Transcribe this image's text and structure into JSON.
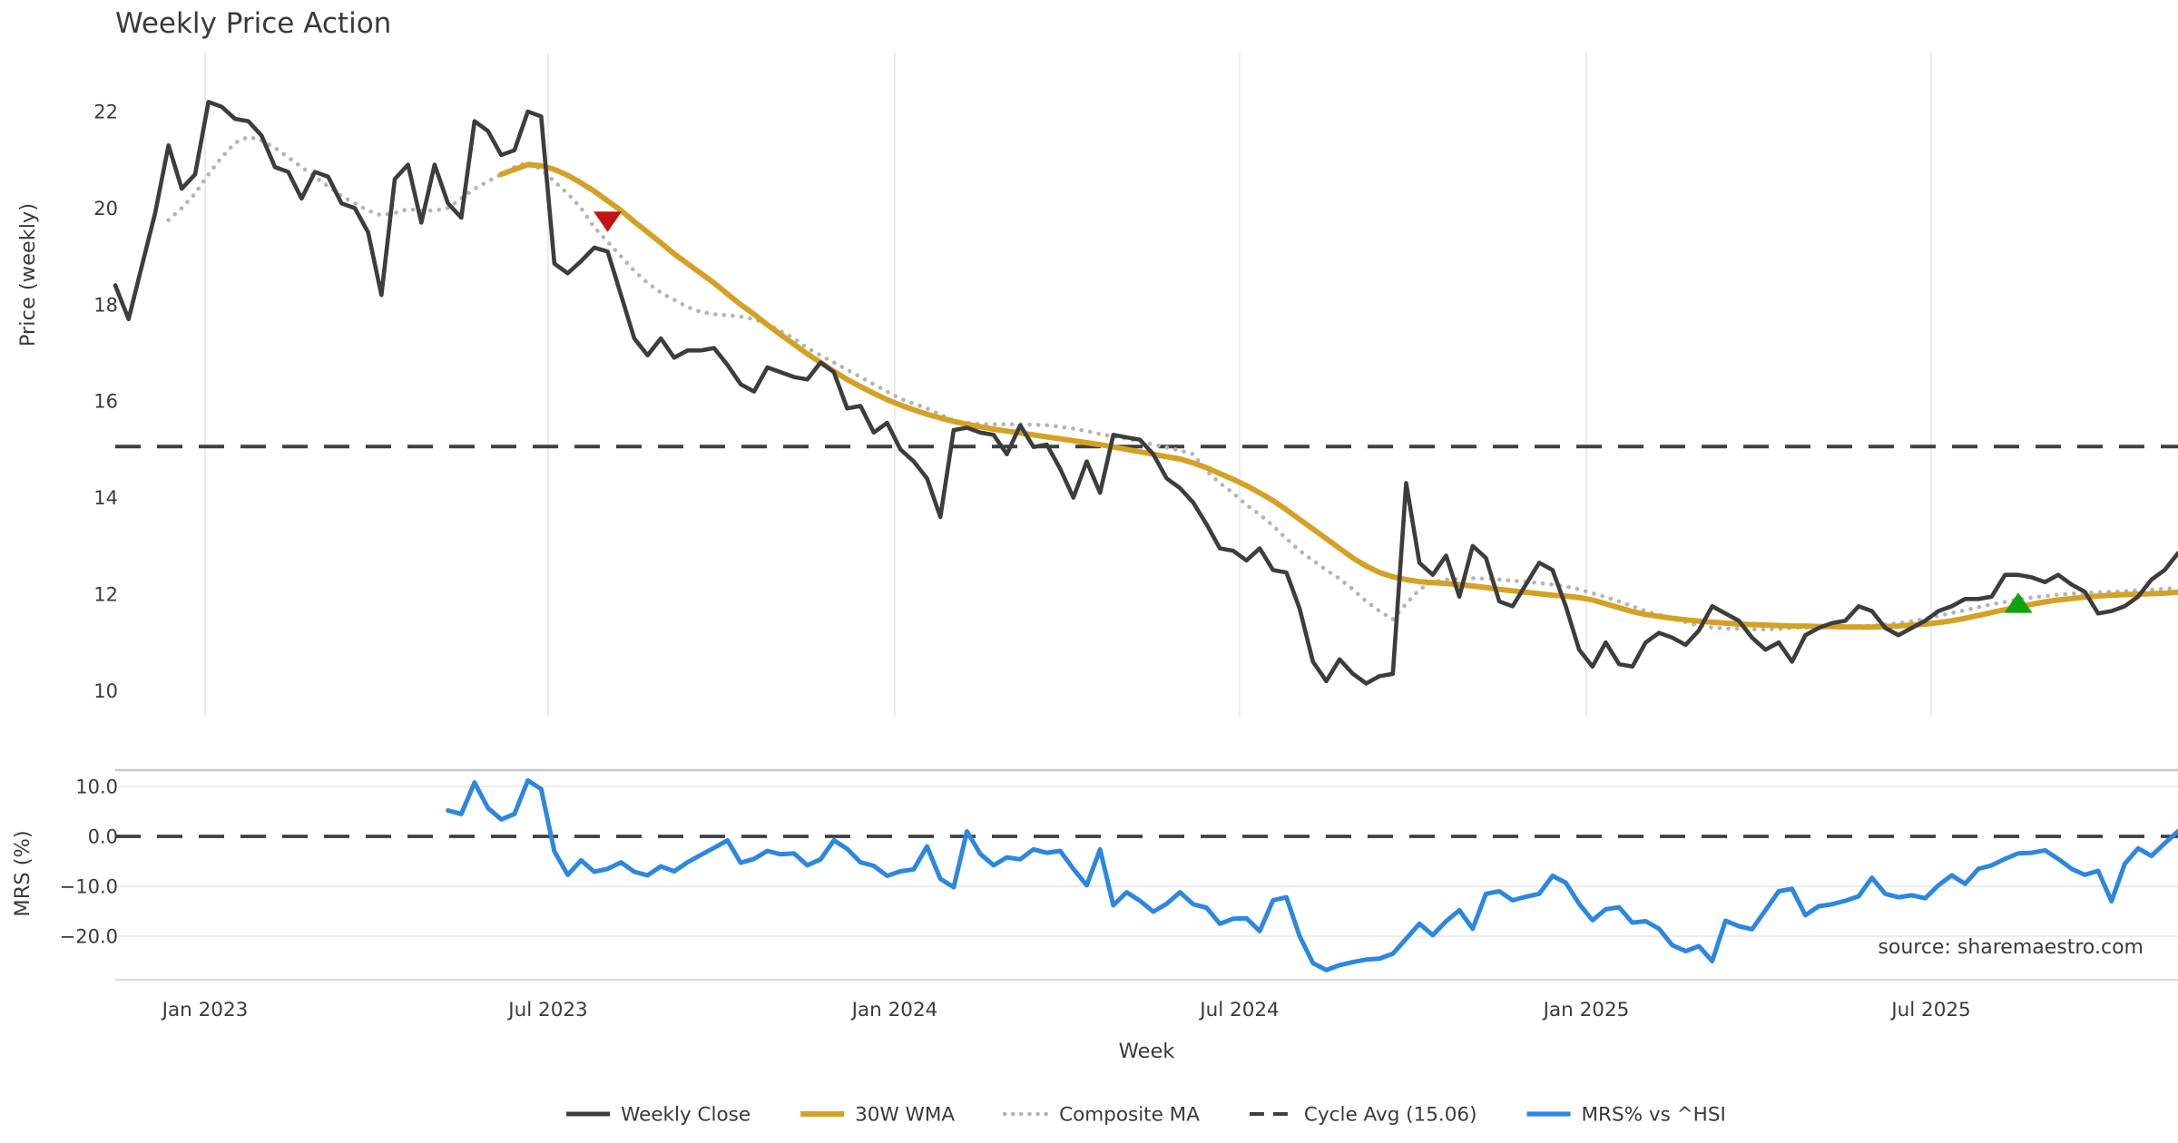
{
  "chart_data": {
    "type": "line",
    "title": "Weekly Price Action",
    "source_note": "source: sharemaestro.com",
    "xlabel": "Week",
    "x_ticklabels": [
      "Jan 2023",
      "Jul 2023",
      "Jan 2024",
      "Jul 2024",
      "Jan 2025",
      "Jul 2025"
    ],
    "top_panel": {
      "ylabel": "Price (weekly)",
      "ytick_values": [
        22,
        20,
        18,
        16,
        14,
        12,
        10
      ],
      "ytick_labels": [
        "22",
        "20",
        "18",
        "16",
        "14",
        "12",
        "10"
      ],
      "ylim": [
        9.6,
        23.2
      ],
      "cycle_avg_value": 15.06
    },
    "bottom_panel": {
      "ylabel": "MRS (%)",
      "ytick_values": [
        10,
        0,
        -10,
        -20
      ],
      "ytick_labels": [
        "10.0",
        "0.0",
        "−10.0",
        "−20.0"
      ],
      "ylim": [
        -28.5,
        13.5
      ],
      "zero_line_value": 0
    },
    "legend": [
      {
        "label": "Weekly Close",
        "style": "solid-dark"
      },
      {
        "label": "30W WMA",
        "style": "solid-gold"
      },
      {
        "label": "Composite MA",
        "style": "dotted-gray"
      },
      {
        "label": "Cycle Avg (15.06)",
        "style": "dashed-dark"
      },
      {
        "label": "MRS% vs ^HSI",
        "style": "solid-blue"
      }
    ],
    "colors": {
      "weekly_close": "#3d3d3d",
      "wma": "#d5a124",
      "composite": "#b5b5b5",
      "cycle_avg": "#3f3f3f",
      "mrs": "#2c87e0",
      "sell_marker": "#c51212",
      "buy_marker": "#12a312",
      "grid": "#e9edf2",
      "hgrid": "#ededed",
      "spine_top": "#c2c7ce",
      "spine_bottom": "#d9d9d9",
      "text": "#2d2d2d",
      "tick_text": "#3a3a3a",
      "source_text": "#9b9b9b"
    },
    "markers": {
      "sell": {
        "week": 37,
        "price": 19.72,
        "shape": "triangle-down"
      },
      "buy": {
        "week": 143,
        "price": 11.82,
        "shape": "triangle-up"
      }
    },
    "series": {
      "weekly_close": [
        18.4,
        17.7,
        18.8,
        19.9,
        21.3,
        20.4,
        20.7,
        22.2,
        22.1,
        21.85,
        21.8,
        21.5,
        20.85,
        20.75,
        20.2,
        20.75,
        20.65,
        20.1,
        20.0,
        19.5,
        18.2,
        20.6,
        20.9,
        19.7,
        20.9,
        20.1,
        19.8,
        21.8,
        21.6,
        21.1,
        21.2,
        22.0,
        21.9,
        18.85,
        18.65,
        18.9,
        19.18,
        19.1,
        18.2,
        17.3,
        16.95,
        17.3,
        16.9,
        17.05,
        17.05,
        17.1,
        16.75,
        16.35,
        16.2,
        16.7,
        16.6,
        16.5,
        16.45,
        16.8,
        16.6,
        15.85,
        15.9,
        15.35,
        15.55,
        15.0,
        14.75,
        14.4,
        13.6,
        15.4,
        15.45,
        15.35,
        15.3,
        14.9,
        15.5,
        15.05,
        15.1,
        14.6,
        14.0,
        14.75,
        14.1,
        15.3,
        15.25,
        15.2,
        14.9,
        14.4,
        14.2,
        13.9,
        13.45,
        12.95,
        12.9,
        12.7,
        12.95,
        12.5,
        12.45,
        11.7,
        10.6,
        10.2,
        10.65,
        10.35,
        10.15,
        10.3,
        10.35,
        14.3,
        12.65,
        12.4,
        12.8,
        11.95,
        13.0,
        12.75,
        11.85,
        11.75,
        12.2,
        12.65,
        12.5,
        11.75,
        10.85,
        10.5,
        11.0,
        10.55,
        10.5,
        11.0,
        11.2,
        11.1,
        10.95,
        11.25,
        11.75,
        11.6,
        11.45,
        11.1,
        10.85,
        11.0,
        10.6,
        11.15,
        11.3,
        11.4,
        11.45,
        11.75,
        11.65,
        11.3,
        11.15,
        11.3,
        11.45,
        11.65,
        11.75,
        11.9,
        11.9,
        11.95,
        12.4,
        12.4,
        12.35,
        12.25,
        12.4,
        12.2,
        12.05,
        11.6,
        11.65,
        11.75,
        11.95,
        12.3,
        12.5,
        12.85
      ],
      "wma_30w": [
        null,
        null,
        null,
        null,
        null,
        null,
        null,
        null,
        null,
        null,
        null,
        null,
        null,
        null,
        null,
        null,
        null,
        null,
        null,
        null,
        null,
        null,
        null,
        null,
        null,
        null,
        null,
        null,
        null,
        20.7,
        20.8,
        20.9,
        20.88,
        20.8,
        20.68,
        20.52,
        20.35,
        20.15,
        19.95,
        19.72,
        19.5,
        19.28,
        19.05,
        18.85,
        18.65,
        18.45,
        18.22,
        18.0,
        17.8,
        17.58,
        17.38,
        17.18,
        16.98,
        16.8,
        16.62,
        16.45,
        16.3,
        16.16,
        16.03,
        15.92,
        15.82,
        15.73,
        15.65,
        15.58,
        15.52,
        15.47,
        15.42,
        15.38,
        15.34,
        15.3,
        15.26,
        15.22,
        15.18,
        15.14,
        15.1,
        15.05,
        15.0,
        14.95,
        14.9,
        14.85,
        14.8,
        14.72,
        14.62,
        14.5,
        14.38,
        14.25,
        14.1,
        13.94,
        13.75,
        13.55,
        13.35,
        13.15,
        12.95,
        12.75,
        12.58,
        12.45,
        12.36,
        12.3,
        12.26,
        12.24,
        12.22,
        12.2,
        12.17,
        12.14,
        12.1,
        12.07,
        12.04,
        12.01,
        11.98,
        11.96,
        11.93,
        11.88,
        11.8,
        11.72,
        11.64,
        11.58,
        11.54,
        11.5,
        11.47,
        11.44,
        11.42,
        11.4,
        11.38,
        11.37,
        11.36,
        11.35,
        11.34,
        11.34,
        11.33,
        11.33,
        11.32,
        11.32,
        11.32,
        11.33,
        11.34,
        11.36,
        11.38,
        11.41,
        11.45,
        11.5,
        11.56,
        11.62,
        11.68,
        11.74,
        11.79,
        11.84,
        11.88,
        11.91,
        11.94,
        11.96,
        11.98,
        11.99,
        12.0,
        12.01,
        12.02,
        12.04
      ],
      "composite_ma": [
        null,
        null,
        null,
        null,
        19.75,
        20.0,
        20.3,
        20.7,
        21.05,
        21.35,
        21.48,
        21.4,
        21.25,
        21.05,
        20.85,
        20.65,
        20.45,
        20.25,
        20.1,
        19.95,
        19.85,
        19.9,
        19.98,
        19.95,
        19.95,
        20.0,
        20.2,
        20.4,
        20.55,
        20.7,
        20.85,
        20.95,
        20.8,
        20.55,
        20.3,
        20.0,
        19.6,
        19.3,
        19.0,
        18.7,
        18.45,
        18.25,
        18.1,
        17.95,
        17.85,
        17.8,
        17.78,
        17.75,
        17.7,
        17.6,
        17.45,
        17.3,
        17.1,
        16.95,
        16.8,
        16.65,
        16.5,
        16.35,
        16.2,
        16.05,
        15.95,
        15.85,
        15.72,
        15.6,
        15.55,
        15.52,
        15.52,
        15.52,
        15.52,
        15.51,
        15.5,
        15.47,
        15.43,
        15.38,
        15.32,
        15.27,
        15.22,
        15.16,
        15.1,
        15.04,
        14.98,
        14.9,
        14.55,
        14.3,
        14.1,
        13.85,
        13.65,
        13.42,
        13.15,
        12.9,
        12.7,
        12.5,
        12.32,
        12.1,
        11.85,
        11.65,
        11.48,
        11.8,
        12.1,
        12.25,
        12.3,
        12.32,
        12.33,
        12.32,
        12.3,
        12.28,
        12.26,
        12.23,
        12.2,
        12.16,
        12.1,
        12.02,
        11.94,
        11.85,
        11.75,
        11.65,
        11.57,
        11.5,
        11.42,
        11.35,
        11.31,
        11.29,
        11.28,
        11.27,
        11.27,
        11.28,
        11.3,
        11.31,
        11.32,
        11.33,
        11.33,
        11.34,
        11.35,
        11.37,
        11.4,
        11.44,
        11.49,
        11.55,
        11.61,
        11.67,
        11.73,
        11.79,
        11.84,
        11.89,
        11.93,
        11.96,
        11.99,
        12.01,
        12.03,
        12.04,
        12.05,
        12.06,
        12.08,
        12.09,
        12.11,
        12.13
      ],
      "mrs_pct": [
        null,
        null,
        null,
        null,
        null,
        null,
        null,
        null,
        null,
        null,
        null,
        null,
        null,
        null,
        null,
        null,
        null,
        null,
        null,
        null,
        null,
        null,
        null,
        null,
        null,
        5.2,
        4.5,
        10.8,
        5.7,
        3.4,
        4.5,
        11.2,
        9.5,
        -3.0,
        -7.7,
        -4.8,
        -7.1,
        -6.5,
        -5.2,
        -7.1,
        -7.8,
        -6.0,
        -7.0,
        -5.2,
        -3.7,
        -2.3,
        -0.8,
        -5.3,
        -4.5,
        -2.9,
        -3.6,
        -3.4,
        -5.8,
        -4.6,
        -0.8,
        -2.5,
        -5.2,
        -5.9,
        -7.9,
        -7.0,
        -6.6,
        -2.0,
        -8.5,
        -10.2,
        1.0,
        -3.5,
        -5.8,
        -4.2,
        -4.6,
        -2.6,
        -3.3,
        -2.9,
        -6.5,
        -9.8,
        -2.6,
        -13.8,
        -11.2,
        -12.9,
        -15.1,
        -13.5,
        -11.2,
        -13.6,
        -14.3,
        -17.5,
        -16.5,
        -16.4,
        -19.0,
        -12.8,
        -12.2,
        -20.0,
        -25.4,
        -26.8,
        -25.8,
        -25.2,
        -24.7,
        -24.5,
        -23.5,
        -20.5,
        -17.5,
        -19.8,
        -17.0,
        -14.8,
        -18.5,
        -11.5,
        -11.0,
        -12.8,
        -12.1,
        -11.5,
        -7.9,
        -9.3,
        -13.5,
        -16.8,
        -14.6,
        -14.2,
        -17.3,
        -17.0,
        -18.5,
        -21.8,
        -23.0,
        -22.0,
        -25.0,
        -16.9,
        -18.0,
        -18.6,
        -14.8,
        -11.0,
        -10.5,
        -15.8,
        -14.0,
        -13.6,
        -12.9,
        -12.0,
        -8.3,
        -11.5,
        -12.2,
        -11.8,
        -12.4,
        -9.8,
        -7.8,
        -9.5,
        -6.5,
        -5.8,
        -4.5,
        -3.4,
        -3.3,
        -2.8,
        -4.5,
        -6.5,
        -7.7,
        -6.9,
        -13.0,
        -5.5,
        -2.4,
        -3.9,
        -1.4,
        1.0
      ]
    }
  }
}
